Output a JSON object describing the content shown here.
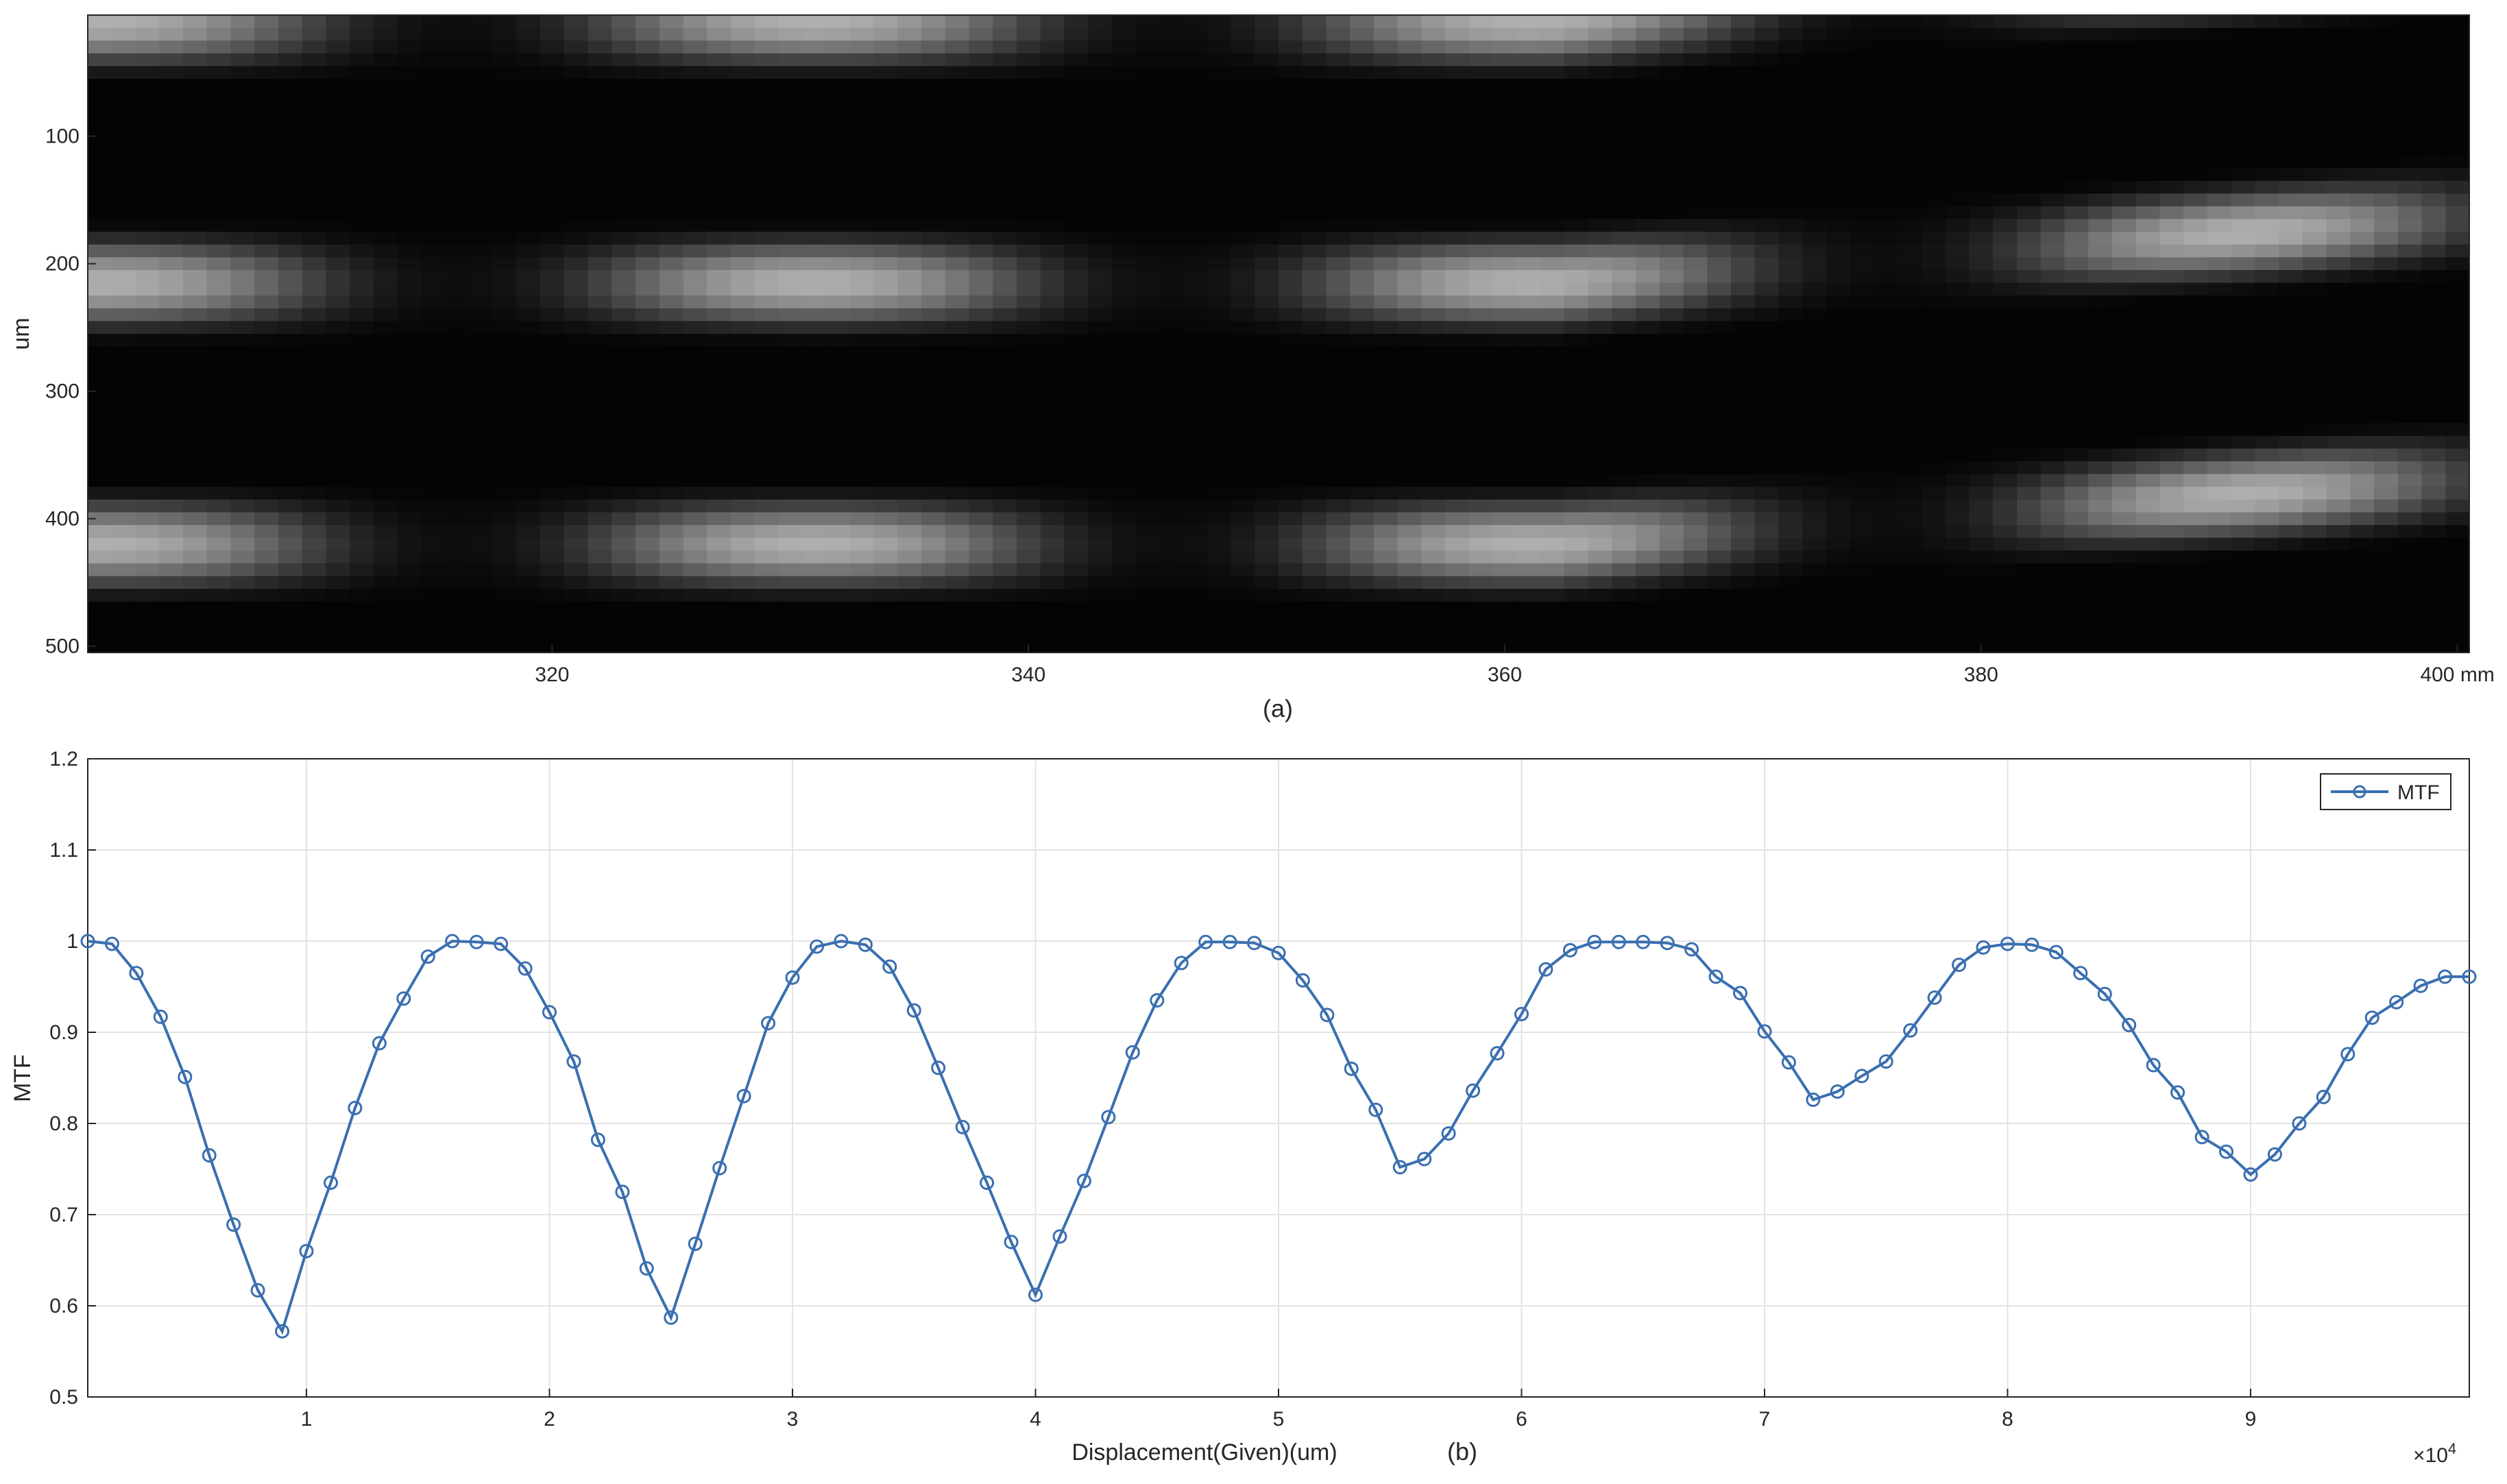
{
  "chart_data": [
    {
      "type": "heatmap",
      "caption": "(a)",
      "ylabel": "um",
      "xlim": [
        300.5,
        400.5
      ],
      "ylim": [
        5,
        505
      ],
      "x_tick_labels": [
        "320",
        "340",
        "360",
        "380",
        "400 mm"
      ],
      "x_ticks": [
        320,
        340,
        360,
        380,
        400
      ],
      "y_tick_labels": [
        "100",
        "200",
        "300",
        "400",
        "500"
      ],
      "y_ticks": [
        100,
        200,
        300,
        400,
        500
      ],
      "colormap": "gray",
      "grid": false
    },
    {
      "type": "line",
      "caption": "(b)",
      "xlabel": "Displacement(Given)(um)",
      "ylabel": "MTF",
      "x_multiplier_label": "×10",
      "x_multiplier_exp": "4",
      "xlim": [
        0.1,
        9.9
      ],
      "ylim": [
        0.5,
        1.2
      ],
      "x_tick_labels": [
        "1",
        "2",
        "3",
        "4",
        "5",
        "6",
        "7",
        "8",
        "9"
      ],
      "y_tick_labels": [
        "0.5",
        "0.6",
        "0.7",
        "0.8",
        "0.9",
        "1",
        "1.1",
        "1.2"
      ],
      "grid": true,
      "legend": {
        "position": "top-right",
        "entries": [
          "MTF"
        ]
      },
      "series": [
        {
          "name": "MTF",
          "color": "#3a6fb0",
          "marker": "circle",
          "x": [
            0.1,
            0.2,
            0.3,
            0.4,
            0.5,
            0.6,
            0.7,
            0.8,
            0.9,
            1.0,
            1.1,
            1.2,
            1.3,
            1.4,
            1.5,
            1.6,
            1.7,
            1.8,
            1.9,
            2.0,
            2.1,
            2.2,
            2.3,
            2.4,
            2.5,
            2.6,
            2.7,
            2.8,
            2.9,
            3.0,
            3.1,
            3.2,
            3.3,
            3.4,
            3.5,
            3.6,
            3.7,
            3.8,
            3.9,
            4.0,
            4.1,
            4.2,
            4.3,
            4.4,
            4.5,
            4.6,
            4.7,
            4.8,
            4.9,
            5.0,
            5.1,
            5.2,
            5.3,
            5.4,
            5.5,
            5.6,
            5.7,
            5.8,
            5.9,
            6.0,
            6.1,
            6.2,
            6.3,
            6.4,
            6.5,
            6.6,
            6.7,
            6.8,
            6.9,
            7.0,
            7.1,
            7.2,
            7.3,
            7.4,
            7.5,
            7.6,
            7.7,
            7.8,
            7.9,
            8.0,
            8.1,
            8.2,
            8.3,
            8.4,
            8.5,
            8.6,
            8.7,
            8.8,
            8.9,
            9.0,
            9.1,
            9.2,
            9.3,
            9.4,
            9.5,
            9.6,
            9.7,
            9.8,
            9.9
          ],
          "y": [
            1.0,
            0.997,
            0.965,
            0.917,
            0.851,
            0.765,
            0.689,
            0.617,
            0.572,
            0.66,
            0.735,
            0.817,
            0.888,
            0.937,
            0.983,
            1.0,
            0.999,
            0.997,
            0.97,
            0.922,
            0.868,
            0.782,
            0.725,
            0.641,
            0.587,
            0.668,
            0.751,
            0.83,
            0.91,
            0.96,
            0.994,
            1.0,
            0.996,
            0.972,
            0.924,
            0.861,
            0.796,
            0.735,
            0.67,
            0.612,
            0.676,
            0.737,
            0.807,
            0.878,
            0.935,
            0.976,
            0.999,
            0.999,
            0.998,
            0.987,
            0.957,
            0.919,
            0.86,
            0.815,
            0.752,
            0.761,
            0.789,
            0.836,
            0.877,
            0.92,
            0.969,
            0.99,
            0.999,
            0.999,
            0.999,
            0.998,
            0.991,
            0.961,
            0.943,
            0.901,
            0.867,
            0.826,
            0.835,
            0.852,
            0.868,
            0.902,
            0.938,
            0.974,
            0.993,
            0.997,
            0.996,
            0.988,
            0.965,
            0.942,
            0.908,
            0.864,
            0.834,
            0.785,
            0.769,
            0.744,
            0.766,
            0.8,
            0.829,
            0.876,
            0.916,
            0.933,
            0.951,
            0.961,
            0.961
          ]
        }
      ]
    }
  ]
}
